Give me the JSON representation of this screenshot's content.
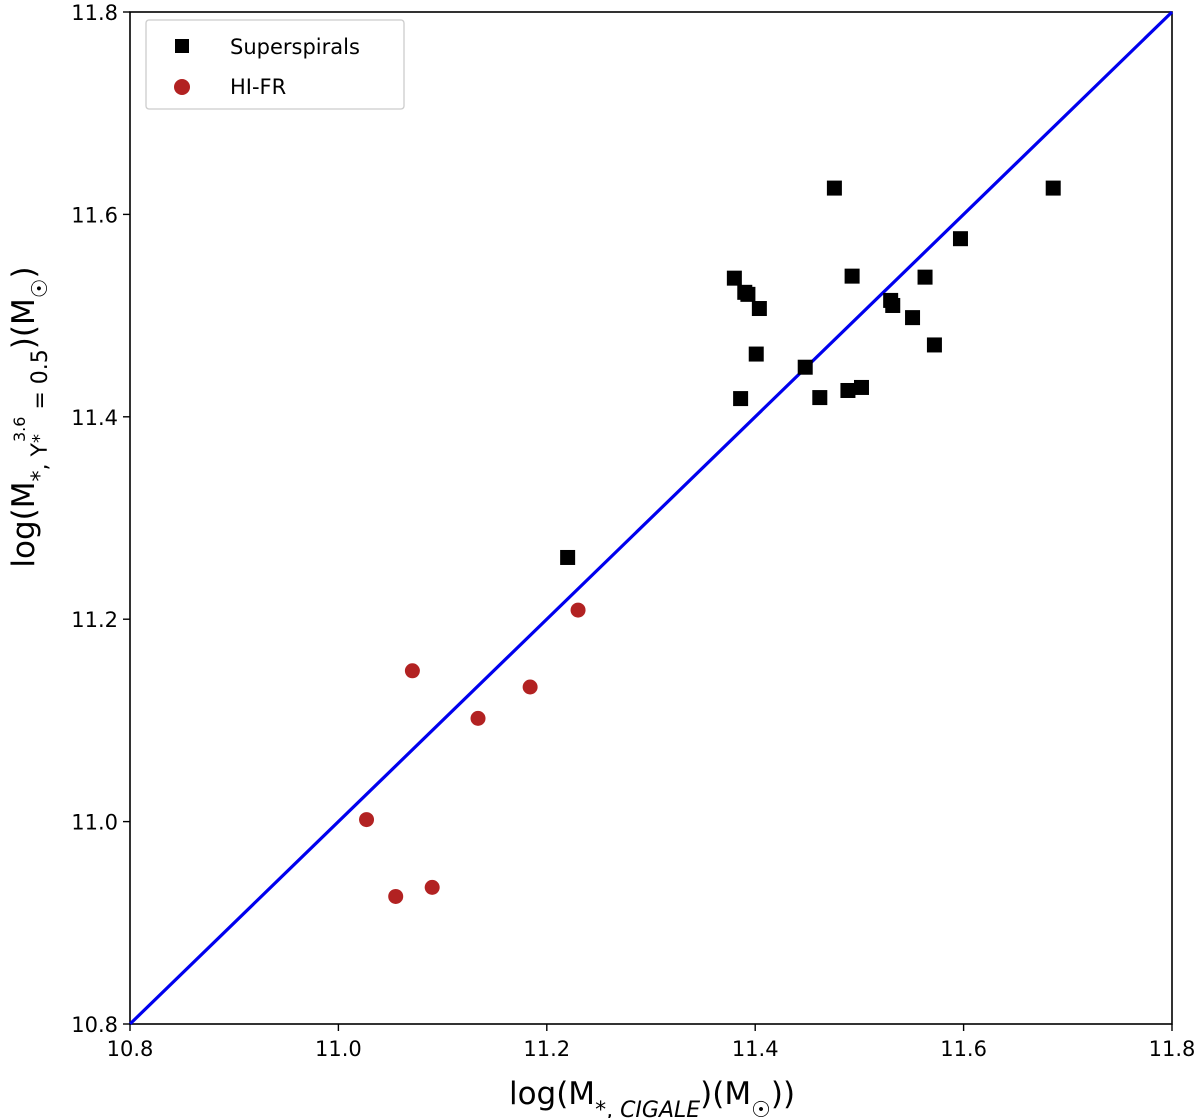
{
  "chart_data": {
    "type": "scatter",
    "xlabel": "log(M*,CIGALE)(M☉))",
    "ylabel": "log(M*,Υ*3.6=0.5)(M☉)",
    "xlim": [
      10.8,
      11.8
    ],
    "ylim": [
      10.8,
      11.8
    ],
    "xticks": [
      "10.8",
      "11.0",
      "11.2",
      "11.4",
      "11.6",
      "11.8"
    ],
    "yticks": [
      "10.8",
      "11.0",
      "11.2",
      "11.4",
      "11.6",
      "11.8"
    ],
    "legend_position": "top-left",
    "reference_line": {
      "name": "one-to-one",
      "x": [
        10.8,
        11.8
      ],
      "y": [
        10.8,
        11.8
      ],
      "color": "#0000ee"
    },
    "series": [
      {
        "name": "Superspirals",
        "marker": "square",
        "color": "#000000",
        "points": [
          [
            11.22,
            11.261
          ],
          [
            11.38,
            11.537
          ],
          [
            11.386,
            11.418
          ],
          [
            11.39,
            11.523
          ],
          [
            11.393,
            11.521
          ],
          [
            11.401,
            11.462
          ],
          [
            11.404,
            11.507
          ],
          [
            11.448,
            11.449
          ],
          [
            11.462,
            11.419
          ],
          [
            11.476,
            11.626
          ],
          [
            11.489,
            11.426
          ],
          [
            11.493,
            11.539
          ],
          [
            11.502,
            11.429
          ],
          [
            11.53,
            11.515
          ],
          [
            11.532,
            11.51
          ],
          [
            11.551,
            11.498
          ],
          [
            11.563,
            11.538
          ],
          [
            11.572,
            11.471
          ],
          [
            11.597,
            11.576
          ],
          [
            11.686,
            11.626
          ]
        ]
      },
      {
        "name": "HI-FR",
        "marker": "circle",
        "color": "#b22222",
        "points": [
          [
            11.027,
            11.002
          ],
          [
            11.055,
            10.926
          ],
          [
            11.071,
            11.149
          ],
          [
            11.09,
            10.935
          ],
          [
            11.134,
            11.102
          ],
          [
            11.184,
            11.133
          ],
          [
            11.23,
            11.209
          ]
        ]
      }
    ]
  }
}
